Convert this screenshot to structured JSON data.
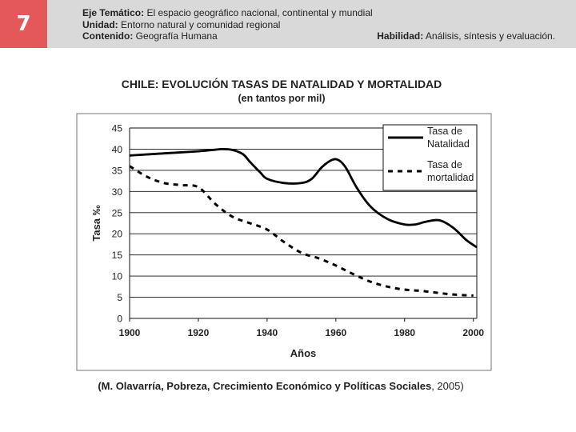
{
  "slide_number": "7",
  "header": {
    "eje_label": "Eje Temático:",
    "eje_value": "El espacio geográfico nacional, continental y mundial",
    "unidad_label": "Unidad:",
    "unidad_value": "Entorno natural y comunidad regional",
    "contenido_label": "Contenido:",
    "contenido_value": "Geografía Humana",
    "habilidad_label": "Habilidad:",
    "habilidad_value": "Análisis, síntesis y evaluación."
  },
  "colors": {
    "accent": "#e4585a",
    "header_bg": "#d9d9d9",
    "chart_line": "#000000"
  },
  "chart_data": {
    "type": "line",
    "title": "CHILE: EVOLUCIÓN TASAS DE NATALIDAD Y MORTALIDAD",
    "subtitle": "(en tantos por mil)",
    "xlabel": "Años",
    "ylabel": "Tasa ‰",
    "xlim": [
      1900,
      2001
    ],
    "ylim": [
      0,
      45
    ],
    "x_ticks": [
      "1900",
      "1920",
      "1940",
      "1960",
      "1980",
      "2000"
    ],
    "y_ticks": [
      "0",
      "5",
      "10",
      "15",
      "20",
      "25",
      "30",
      "35",
      "40",
      "45"
    ],
    "grid": true,
    "legend_position": "top-right",
    "series": [
      {
        "name": "Tasa de Natalidad",
        "legend_lines": [
          "Tasa de",
          "Natalidad"
        ],
        "style": "solid",
        "x": [
          1900,
          1910,
          1920,
          1924,
          1927,
          1930,
          1933,
          1935,
          1938,
          1940,
          1945,
          1950,
          1953,
          1956,
          1959,
          1961,
          1963,
          1966,
          1970,
          1975,
          1980,
          1983,
          1986,
          1990,
          1994,
          1998,
          2001
        ],
        "values": [
          38.5,
          39.0,
          39.5,
          39.8,
          40.0,
          39.8,
          38.8,
          37.0,
          34.5,
          33.0,
          32.0,
          32.0,
          33.0,
          35.8,
          37.5,
          37.3,
          35.5,
          31.0,
          26.5,
          23.5,
          22.2,
          22.2,
          22.8,
          23.2,
          21.5,
          18.5,
          16.8
        ]
      },
      {
        "name": "Tasa de mortalidad",
        "legend_lines": [
          "Tasa de",
          "mortalidad"
        ],
        "style": "dashed",
        "x": [
          1900,
          1905,
          1910,
          1915,
          1920,
          1925,
          1930,
          1935,
          1940,
          1945,
          1950,
          1955,
          1960,
          1965,
          1970,
          1975,
          1980,
          1985,
          1990,
          1995,
          2000
        ],
        "values": [
          36.0,
          33.5,
          32.0,
          31.5,
          31.0,
          27.0,
          24.0,
          22.5,
          21.0,
          18.0,
          15.5,
          14.2,
          12.5,
          10.5,
          8.7,
          7.5,
          6.8,
          6.5,
          6.0,
          5.6,
          5.4
        ]
      }
    ],
    "source_note": {
      "parts": [
        {
          "text": "(M. Olavarría, Pobreza, Crecimiento Económico y Políticas Sociales",
          "bold": true
        },
        {
          "text": ", 2005)",
          "bold": false
        }
      ]
    }
  }
}
